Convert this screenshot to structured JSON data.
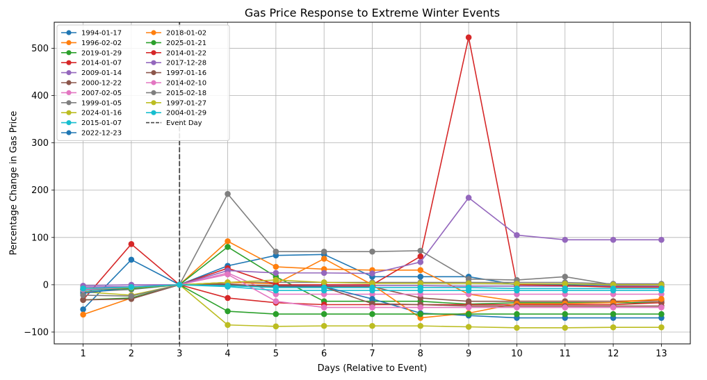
{
  "chart_data": {
    "type": "line",
    "title": "Gas Price Response to Extreme Winter Events",
    "xlabel": "Days (Relative to Event)",
    "ylabel": "Percentage Change in Gas Price",
    "x": [
      1,
      2,
      3,
      4,
      5,
      6,
      7,
      8,
      9,
      10,
      11,
      12,
      13
    ],
    "xlim": [
      0.4,
      13.6
    ],
    "ylim": [
      -125,
      555
    ],
    "yticks": [
      -100,
      0,
      100,
      200,
      300,
      400,
      500
    ],
    "grid": true,
    "legend_position": "top-left",
    "legend_columns": 2,
    "event_line": {
      "x": 3,
      "label": "Event Day",
      "style": "dashed",
      "color": "#444444"
    },
    "series": [
      {
        "name": "1994-01-17",
        "color": "#1f77b4",
        "values": [
          -52,
          53,
          0,
          40,
          62,
          64,
          17,
          17,
          17,
          0,
          0,
          -2,
          -3
        ]
      },
      {
        "name": "1996-02-02",
        "color": "#ff7f0e",
        "values": [
          -63,
          -28,
          0,
          92,
          38,
          33,
          31,
          31,
          -20,
          -35,
          -35,
          -35,
          -32
        ]
      },
      {
        "name": "2019-01-29",
        "color": "#2ca02c",
        "values": [
          -32,
          -28,
          0,
          80,
          17,
          -35,
          -35,
          -35,
          -41,
          -38,
          -38,
          -38,
          -38
        ]
      },
      {
        "name": "2014-01-07",
        "color": "#d62728",
        "values": [
          -32,
          86,
          0,
          -28,
          -38,
          -42,
          -42,
          -42,
          -42,
          -42,
          -42,
          -42,
          -38
        ]
      },
      {
        "name": "2009-01-14",
        "color": "#9467bd",
        "values": [
          -2,
          0,
          0,
          -2,
          -2,
          -2,
          -2,
          -2,
          -3,
          -3,
          -3,
          -3,
          -3
        ]
      },
      {
        "name": "2000-12-22",
        "color": "#8c564b",
        "values": [
          -32,
          -30,
          0,
          0,
          -2,
          -4,
          -4,
          -28,
          -35,
          -35,
          -35,
          -35,
          -35
        ]
      },
      {
        "name": "2007-02-05",
        "color": "#e377c2",
        "values": [
          -10,
          -6,
          0,
          25,
          -20,
          -20,
          -20,
          -20,
          -20,
          -20,
          -20,
          -20,
          -20
        ]
      },
      {
        "name": "1999-01-05",
        "color": "#7f7f7f",
        "values": [
          -15,
          -10,
          0,
          5,
          5,
          5,
          5,
          5,
          5,
          5,
          5,
          2,
          2
        ]
      },
      {
        "name": "2024-01-16",
        "color": "#bcbd22",
        "values": [
          -15,
          -22,
          0,
          -85,
          -88,
          -87,
          -87,
          -87,
          -89,
          -91,
          -91,
          -90,
          -90
        ]
      },
      {
        "name": "2015-01-07",
        "color": "#17becf",
        "values": [
          -12,
          -8,
          0,
          -4,
          -12,
          -12,
          -12,
          -12,
          -12,
          -12,
          -12,
          -12,
          -12
        ]
      },
      {
        "name": "2022-12-23",
        "color": "#1f77b4",
        "values": [
          -18,
          -6,
          0,
          -2,
          -4,
          -4,
          -30,
          -60,
          -65,
          -70,
          -70,
          -70,
          -70
        ]
      },
      {
        "name": "2018-01-02",
        "color": "#ff7f0e",
        "values": [
          -10,
          -5,
          0,
          5,
          2,
          55,
          0,
          -70,
          -60,
          -40,
          -40,
          -38,
          -30
        ]
      },
      {
        "name": "2025-01-21",
        "color": "#2ca02c",
        "values": [
          -10,
          -8,
          0,
          -56,
          -62,
          -62,
          -62,
          -62,
          -62,
          -62,
          -62,
          -62,
          -62
        ]
      },
      {
        "name": "2014-01-22",
        "color": "#d62728",
        "values": [
          -10,
          -6,
          0,
          35,
          0,
          0,
          0,
          60,
          523,
          0,
          -2,
          -5,
          -5
        ]
      },
      {
        "name": "2017-12-28",
        "color": "#9467bd",
        "values": [
          -5,
          -4,
          0,
          30,
          25,
          25,
          24,
          48,
          184,
          105,
          95,
          95,
          95
        ]
      },
      {
        "name": "1997-01-16",
        "color": "#8c564b",
        "values": [
          -10,
          -6,
          0,
          2,
          -5,
          -5,
          -40,
          -42,
          -45,
          -45,
          -45,
          -45,
          -45
        ]
      },
      {
        "name": "2014-02-10",
        "color": "#e377c2",
        "values": [
          -10,
          -6,
          0,
          22,
          -35,
          -48,
          -48,
          -48,
          -48,
          -48,
          -48,
          -48,
          -48
        ]
      },
      {
        "name": "2015-02-18",
        "color": "#7f7f7f",
        "values": [
          -22,
          -24,
          0,
          192,
          70,
          70,
          70,
          72,
          12,
          10,
          17,
          0,
          0
        ]
      },
      {
        "name": "1997-01-27",
        "color": "#bcbd22",
        "values": [
          -8,
          -6,
          0,
          5,
          10,
          5,
          3,
          3,
          3,
          2,
          2,
          0,
          0
        ]
      },
      {
        "name": "2004-01-29",
        "color": "#17becf",
        "values": [
          -8,
          -5,
          0,
          -2,
          -6,
          -6,
          -6,
          -6,
          -6,
          -8,
          -8,
          -8,
          -8
        ]
      }
    ]
  }
}
